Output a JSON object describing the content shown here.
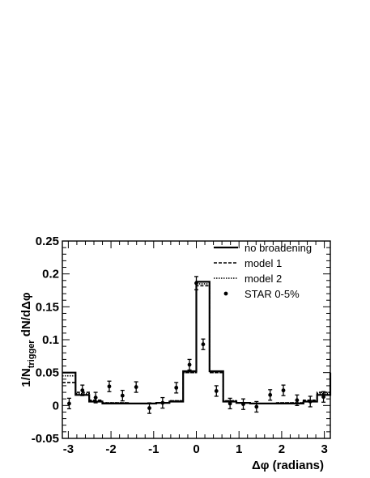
{
  "chart_data": {
    "type": "line",
    "title": "",
    "xlabel": "Δφ (radians)",
    "ylabel": "1/N_trigger dN/dΔφ",
    "ylabel_parts": {
      "main": "1/N",
      "sub": "trigger",
      "rest": " dN/dΔφ"
    },
    "xlim": [
      -3.14,
      3.14
    ],
    "ylim": [
      -0.05,
      0.25
    ],
    "x_ticks": [
      -3,
      -2,
      -1,
      0,
      1,
      2,
      3
    ],
    "x_tick_labels": [
      "-3",
      "-2",
      "-1",
      "0",
      "1",
      "2",
      "3"
    ],
    "y_ticks": [
      -0.05,
      0,
      0.05,
      0.1,
      0.15,
      0.2,
      0.25
    ],
    "y_tick_labels": [
      "-0.05",
      "0",
      "0.05",
      "0.1",
      "0.15",
      "0.2",
      "0.25"
    ],
    "grid": false,
    "legend_position": "top-right",
    "bin_edges": [
      -3.14,
      -2.83,
      -2.51,
      -2.2,
      -1.88,
      -1.57,
      -1.26,
      -0.94,
      -0.63,
      -0.31,
      0,
      0.31,
      0.63,
      0.94,
      1.26,
      1.57,
      1.88,
      2.2,
      2.51,
      2.83,
      3.14
    ],
    "series": [
      {
        "name": "no broadening",
        "style": "solid",
        "values": [
          0.05,
          0.016,
          0.006,
          0.003,
          0.003,
          0.003,
          0.003,
          0.004,
          0.006,
          0.052,
          0.188,
          0.052,
          0.006,
          0.004,
          0.003,
          0.003,
          0.003,
          0.003,
          0.006,
          0.016,
          0.05
        ]
      },
      {
        "name": "model 1",
        "style": "dashed",
        "values": [
          0.035,
          0.02,
          0.008,
          0.004,
          0.004,
          0.003,
          0.003,
          0.004,
          0.007,
          0.05,
          0.182,
          0.05,
          0.007,
          0.004,
          0.003,
          0.003,
          0.004,
          0.004,
          0.008,
          0.02,
          0.035
        ]
      },
      {
        "name": "model 2",
        "style": "dotted",
        "values": [
          0.045,
          0.018,
          0.007,
          0.004,
          0.004,
          0.003,
          0.003,
          0.004,
          0.007,
          0.05,
          0.185,
          0.05,
          0.007,
          0.004,
          0.003,
          0.003,
          0.004,
          0.004,
          0.007,
          0.018,
          0.045
        ]
      }
    ],
    "points": {
      "name": "STAR 0-5%",
      "x": [
        -2.98,
        -2.67,
        -2.36,
        -2.04,
        -1.73,
        -1.41,
        -1.1,
        -0.79,
        -0.47,
        -0.16,
        0.0,
        0.16,
        0.47,
        0.79,
        1.1,
        1.41,
        1.73,
        2.04,
        2.36,
        2.67,
        2.98
      ],
      "y": [
        0.003,
        0.023,
        0.012,
        0.029,
        0.015,
        0.028,
        -0.004,
        0.004,
        0.027,
        0.062,
        0.186,
        0.093,
        0.022,
        0.003,
        0.002,
        -0.002,
        0.016,
        0.023,
        0.008,
        0.006,
        0.013
      ],
      "yerr": [
        0.008,
        0.008,
        0.008,
        0.008,
        0.008,
        0.008,
        0.008,
        0.008,
        0.008,
        0.008,
        0.01,
        0.008,
        0.008,
        0.008,
        0.008,
        0.008,
        0.008,
        0.008,
        0.008,
        0.008,
        0.008
      ]
    },
    "legend": [
      "no broadening",
      "model 1",
      "model 2",
      "STAR 0-5%"
    ]
  }
}
